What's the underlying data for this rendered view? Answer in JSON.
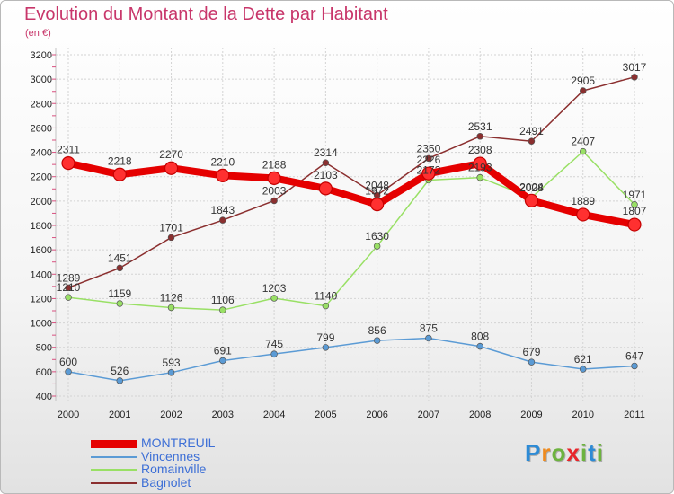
{
  "title": "Evolution du Montant de la Dette par Habitant",
  "unit": "(en €)",
  "logo": {
    "text": "Proxiti",
    "letter_colors": [
      "#2d8bd6",
      "#f08a1c",
      "#6db33f",
      "#e8262b",
      "#6db33f",
      "#2d8bd6",
      "#6db33f"
    ]
  },
  "chart_data": {
    "type": "line",
    "x": [
      "2000",
      "2001",
      "2002",
      "2003",
      "2004",
      "2005",
      "2006",
      "2007",
      "2008",
      "2009",
      "2010",
      "2011"
    ],
    "ylim": [
      400,
      3200
    ],
    "yticks": [
      "400",
      "600",
      "800",
      "1000",
      "1200",
      "1400",
      "1600",
      "1800",
      "2000",
      "2200",
      "2400",
      "2600",
      "2800",
      "3000",
      "3200"
    ],
    "grid": true,
    "legend_position": "bottom-left",
    "series": [
      {
        "name": "MONTREUIL",
        "color": "#e50000",
        "values": [
          2311,
          2218,
          2270,
          2210,
          2188,
          2103,
          1972,
          2226,
          2308,
          2004,
          1889,
          1807
        ],
        "labels": [
          "2311",
          "2218",
          "2270",
          "2210",
          "2188",
          "2103",
          "1972",
          "2226",
          "2308",
          "2004",
          "1889",
          "1807"
        ]
      },
      {
        "name": "Vincennes",
        "color": "#5b9bd5",
        "values": [
          600,
          526,
          593,
          691,
          745,
          799,
          856,
          875,
          808,
          679,
          621,
          647
        ],
        "labels": [
          "600",
          "526",
          "593",
          "691",
          "745",
          "799",
          "856",
          "875",
          "808",
          "679",
          "621",
          "647"
        ]
      },
      {
        "name": "Romainville",
        "color": "#99e065",
        "values": [
          1210,
          1159,
          1126,
          1106,
          1203,
          1140,
          1630,
          2172,
          2193,
          2028,
          2407,
          1971
        ],
        "labels": [
          "1210",
          "1159",
          "1126",
          "1106",
          "1203",
          "1140",
          "1630",
          "2172",
          "2193",
          "2028",
          "2407",
          "1971"
        ]
      },
      {
        "name": "Bagnolet",
        "color": "#8b2f2f",
        "values": [
          1289,
          1451,
          1701,
          1843,
          2003,
          2314,
          2048,
          2350,
          2531,
          2491,
          2905,
          3017
        ],
        "labels": [
          "1289",
          "1451",
          "1701",
          "1843",
          "2003",
          "2314",
          "2048",
          "2350",
          "2531",
          "2491",
          "2905",
          "3017"
        ]
      }
    ]
  }
}
